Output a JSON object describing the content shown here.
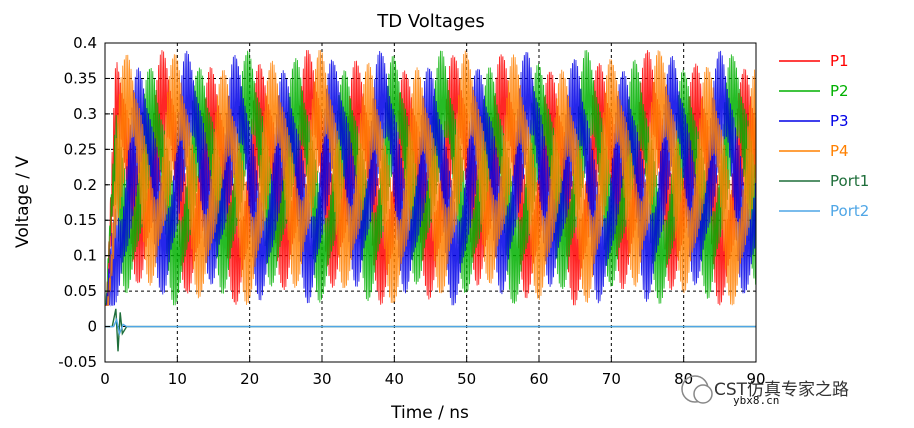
{
  "chart_data": {
    "type": "line",
    "title": "TD Voltages",
    "xlabel": "Time / ns",
    "ylabel": "Voltage / V",
    "xlim": [
      0,
      90
    ],
    "ylim": [
      -0.05,
      0.4
    ],
    "x_ticks": [
      "0",
      "10",
      "20",
      "30",
      "40",
      "50",
      "60",
      "70",
      "80",
      "90"
    ],
    "y_ticks": [
      "-0.05",
      "0",
      "0.05",
      "0.1",
      "0.15",
      "0.2",
      "0.25",
      "0.3",
      "0.35",
      "0.4"
    ],
    "grid": true,
    "legend_position": "right",
    "series": [
      {
        "name": "P1",
        "color": "#ff0000",
        "description": "dense oscillation",
        "baseline": 0.21,
        "envelope_min": 0.03,
        "envelope_max": 0.39
      },
      {
        "name": "P2",
        "color": "#00b000",
        "description": "dense oscillation",
        "baseline": 0.21,
        "envelope_min": 0.03,
        "envelope_max": 0.39
      },
      {
        "name": "P3",
        "color": "#0000e6",
        "description": "dense oscillation",
        "baseline": 0.21,
        "envelope_min": 0.03,
        "envelope_max": 0.39
      },
      {
        "name": "P4",
        "color": "#ff8000",
        "description": "dense oscillation",
        "baseline": 0.21,
        "envelope_min": 0.03,
        "envelope_max": 0.39
      },
      {
        "name": "Port1",
        "color": "#1e6e3a",
        "description": "short pulse near 2 ns then zero",
        "points": [
          [
            0,
            0
          ],
          [
            1.0,
            0
          ],
          [
            1.5,
            0.025
          ],
          [
            1.8,
            -0.035
          ],
          [
            2.1,
            0.02
          ],
          [
            2.4,
            -0.01
          ],
          [
            3.0,
            0
          ],
          [
            90,
            0
          ]
        ]
      },
      {
        "name": "Port2",
        "color": "#4fa6e6",
        "description": "small ripple then zero",
        "points": [
          [
            0,
            0
          ],
          [
            1.2,
            0
          ],
          [
            1.6,
            0.01
          ],
          [
            2.0,
            -0.01
          ],
          [
            2.5,
            0.003
          ],
          [
            3.0,
            0
          ],
          [
            90,
            0
          ]
        ]
      }
    ]
  },
  "watermark": {
    "text": "CST仿真专家之路",
    "subtext": "ybx8.cn"
  }
}
